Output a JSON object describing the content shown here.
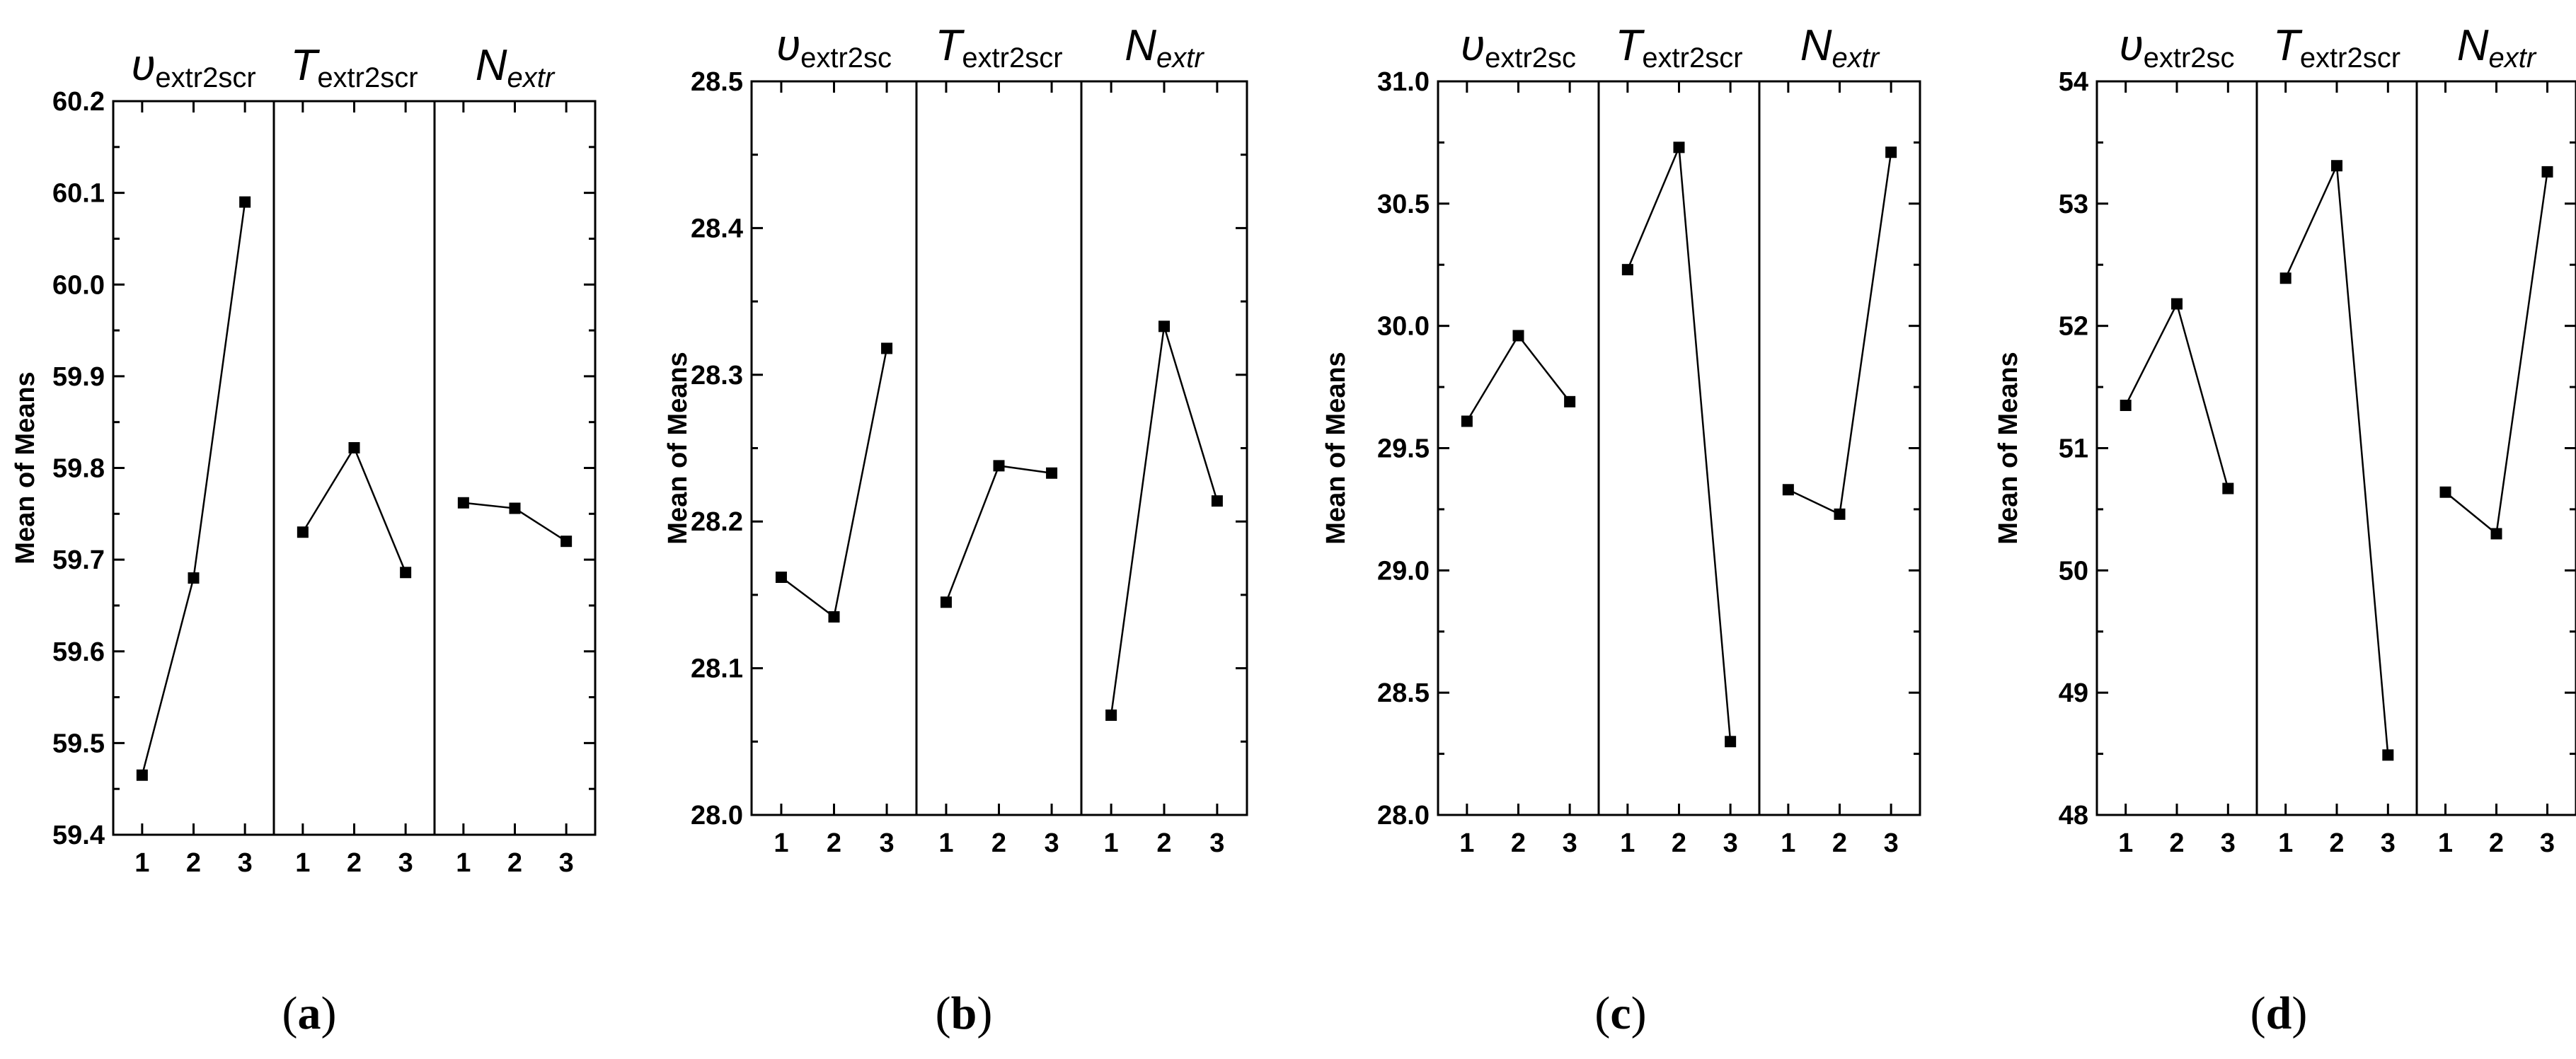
{
  "figure": {
    "subfigure_labels": [
      {
        "open": "(",
        "letter": "a",
        "close": ")"
      },
      {
        "open": "(",
        "letter": "b",
        "close": ")"
      },
      {
        "open": "(",
        "letter": "c",
        "close": ")"
      },
      {
        "open": "(",
        "letter": "d",
        "close": ")"
      }
    ]
  },
  "chart_data": [
    {
      "type": "line",
      "id": "a",
      "ylabel": "Mean of Means",
      "ylim": [
        59.4,
        60.2
      ],
      "yticks": [
        "59.4",
        "59.5",
        "59.6",
        "59.7",
        "59.8",
        "59.9",
        "60.0",
        "60.1",
        "60.2"
      ],
      "x": [
        "1",
        "2",
        "3"
      ],
      "panels": [
        {
          "symbol": "υ",
          "subscript": "extr2scr",
          "italic_sub": false,
          "values": [
            59.465,
            59.68,
            60.09
          ]
        },
        {
          "symbol": "T",
          "subscript": "extr2scr",
          "italic_sub": false,
          "values": [
            59.73,
            59.822,
            59.686
          ]
        },
        {
          "symbol": "N",
          "subscript": "extr",
          "italic_sub": true,
          "values": [
            59.762,
            59.756,
            59.72
          ]
        }
      ]
    },
    {
      "type": "line",
      "id": "b",
      "ylabel": "Mean of Means",
      "ylim": [
        28.0,
        28.5
      ],
      "yticks": [
        "28.0",
        "28.1",
        "28.2",
        "28.3",
        "28.4",
        "28.5"
      ],
      "x": [
        "1",
        "2",
        "3"
      ],
      "panels": [
        {
          "symbol": "υ",
          "subscript": "extr2sc",
          "italic_sub": false,
          "values": [
            28.162,
            28.135,
            28.318
          ]
        },
        {
          "symbol": "T",
          "subscript": "extr2scr",
          "italic_sub": false,
          "values": [
            28.145,
            28.238,
            28.233
          ]
        },
        {
          "symbol": "N",
          "subscript": "extr",
          "italic_sub": true,
          "values": [
            28.068,
            28.333,
            28.214
          ]
        }
      ]
    },
    {
      "type": "line",
      "id": "c",
      "ylabel": "Mean of Means",
      "ylim": [
        28.0,
        31.0
      ],
      "yticks": [
        "28.0",
        "28.5",
        "29.0",
        "29.5",
        "30.0",
        "30.5",
        "31.0"
      ],
      "x": [
        "1",
        "2",
        "3"
      ],
      "panels": [
        {
          "symbol": "υ",
          "subscript": "extr2sc",
          "italic_sub": false,
          "values": [
            29.61,
            29.96,
            29.69
          ]
        },
        {
          "symbol": "T",
          "subscript": "extr2scr",
          "italic_sub": false,
          "values": [
            30.23,
            30.73,
            28.3
          ]
        },
        {
          "symbol": "N",
          "subscript": "extr",
          "italic_sub": true,
          "values": [
            29.33,
            29.23,
            30.71
          ]
        }
      ]
    },
    {
      "type": "line",
      "id": "d",
      "ylabel": "Mean of Means",
      "ylim": [
        48,
        54
      ],
      "yticks": [
        "48",
        "49",
        "50",
        "51",
        "52",
        "53",
        "54"
      ],
      "x": [
        "1",
        "2",
        "3"
      ],
      "panels": [
        {
          "symbol": "υ",
          "subscript": "extr2sc",
          "italic_sub": false,
          "values": [
            51.35,
            52.18,
            50.67
          ]
        },
        {
          "symbol": "T",
          "subscript": "extr2scr",
          "italic_sub": false,
          "values": [
            52.39,
            53.31,
            48.49
          ]
        },
        {
          "symbol": "N",
          "subscript": "extr",
          "italic_sub": true,
          "values": [
            50.64,
            50.3,
            53.26
          ]
        }
      ]
    }
  ]
}
